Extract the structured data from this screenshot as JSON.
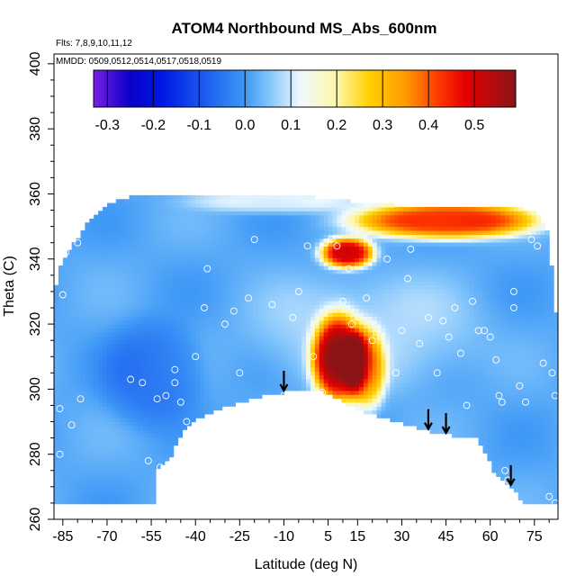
{
  "chart_data": {
    "type": "heatmap",
    "title": "ATOM4 Northbound MS_Abs_600nm",
    "annotations": {
      "flights": "Flts: 7,8,9,10,11,12",
      "dates": "MMDD: 0509,0512,0514,0517,0518,0519"
    },
    "xlabel": "Latitude (deg N)",
    "ylabel": "Theta (C)",
    "xlim": [
      -88,
      83
    ],
    "ylim": [
      260,
      403
    ],
    "x_ticks": [
      -85,
      -70,
      -55,
      -40,
      -25,
      -10,
      5,
      15,
      30,
      45,
      60,
      75
    ],
    "y_ticks": [
      260,
      280,
      300,
      320,
      340,
      360,
      380,
      400
    ],
    "grid": false,
    "colorbar": {
      "range": [
        -0.33,
        0.59
      ],
      "ticks": [
        -0.3,
        -0.2,
        -0.1,
        0.0,
        0.1,
        0.2,
        0.3,
        0.4,
        0.5
      ],
      "tick_labels": [
        "-0.3",
        "-0.2",
        "-0.1",
        "0.0",
        "0.1",
        "0.2",
        "0.3",
        "0.4",
        "0.5"
      ],
      "stops": [
        {
          "value": -0.33,
          "color": "#7a1fe8"
        },
        {
          "value": -0.25,
          "color": "#0a00c8"
        },
        {
          "value": -0.18,
          "color": "#0018e6"
        },
        {
          "value": -0.08,
          "color": "#1e62f0"
        },
        {
          "value": 0.0,
          "color": "#3e98f6"
        },
        {
          "value": 0.05,
          "color": "#7fc3fb"
        },
        {
          "value": 0.12,
          "color": "#eef9ff"
        },
        {
          "value": 0.2,
          "color": "#fff7a8"
        },
        {
          "value": 0.27,
          "color": "#ffd100"
        },
        {
          "value": 0.35,
          "color": "#ff9a00"
        },
        {
          "value": 0.42,
          "color": "#ff3c00"
        },
        {
          "value": 0.48,
          "color": "#e60000"
        },
        {
          "value": 0.59,
          "color": "#8a1416"
        }
      ]
    },
    "surface_boundary": [
      [
        -88,
        265
      ],
      [
        -53,
        265
      ],
      [
        -53,
        275
      ],
      [
        -48,
        280
      ],
      [
        -43,
        289
      ],
      [
        -37,
        292
      ],
      [
        -28,
        295
      ],
      [
        -17,
        298
      ],
      [
        -10,
        299
      ],
      [
        -3,
        299.5
      ],
      [
        3,
        299
      ],
      [
        9,
        296.5
      ],
      [
        14,
        294
      ],
      [
        25,
        291
      ],
      [
        35,
        288
      ],
      [
        45,
        286
      ],
      [
        50,
        285.5
      ],
      [
        55,
        285
      ],
      [
        58,
        281
      ],
      [
        61,
        275
      ],
      [
        65,
        272
      ],
      [
        68,
        269
      ],
      [
        71,
        265
      ],
      [
        83,
        265
      ]
    ],
    "top_boundary": [
      [
        -88,
        329
      ],
      [
        -86,
        337
      ],
      [
        -83,
        342
      ],
      [
        -79,
        348
      ],
      [
        -75,
        353
      ],
      [
        -70,
        357
      ],
      [
        -60,
        359.5
      ],
      [
        -40,
        360
      ],
      [
        -20,
        360
      ],
      [
        -10,
        359.5
      ],
      [
        0,
        359
      ],
      [
        10,
        358
      ],
      [
        20,
        357
      ],
      [
        40,
        356
      ],
      [
        60,
        356
      ],
      [
        70,
        355.5
      ],
      [
        73,
        355
      ],
      [
        76,
        354
      ],
      [
        79,
        350
      ],
      [
        80,
        345
      ],
      [
        81,
        335
      ],
      [
        82,
        325
      ],
      [
        83,
        318
      ]
    ],
    "background_value": 0.02,
    "features": [
      {
        "name": "upper-layer-plume",
        "x": [
          15,
          75
        ],
        "theta": [
          348,
          356
        ],
        "value": 0.45
      },
      {
        "name": "top-edge-enhancement",
        "x": [
          -40,
          15
        ],
        "theta": [
          356,
          360
        ],
        "value": 0.12
      },
      {
        "name": "central-aerosol-layer",
        "x": [
          2,
          15
        ],
        "theta": [
          297,
          322
        ],
        "value": 0.52
      },
      {
        "name": "central-layer-flank",
        "x": [
          14,
          22
        ],
        "theta": [
          295,
          318
        ],
        "value": 0.3
      },
      {
        "name": "elevated-patch",
        "x": [
          5,
          18
        ],
        "theta": [
          339,
          345
        ],
        "value": 0.5
      },
      {
        "name": "diffuse-plume",
        "x": [
          -20,
          55
        ],
        "theta": [
          300,
          335
        ],
        "value": 0.08
      },
      {
        "name": "low-negative-region",
        "x": [
          -70,
          -40
        ],
        "theta": [
          290,
          320
        ],
        "value": -0.05
      }
    ],
    "arrows_at_latitude": [
      -10,
      39,
      45,
      67
    ],
    "observation_points": [
      [
        -86,
        294
      ],
      [
        -86,
        280
      ],
      [
        -85,
        329
      ],
      [
        -84,
        342
      ],
      [
        -80,
        345
      ],
      [
        -79,
        297
      ],
      [
        -82,
        289
      ],
      [
        -62,
        303
      ],
      [
        -58,
        302
      ],
      [
        -56,
        278
      ],
      [
        -52,
        276
      ],
      [
        -53,
        297
      ],
      [
        -50,
        298
      ],
      [
        -47,
        302
      ],
      [
        -47,
        306
      ],
      [
        -45,
        296
      ],
      [
        -43,
        290
      ],
      [
        -40,
        310
      ],
      [
        -37,
        325
      ],
      [
        -36,
        337
      ],
      [
        -30,
        320
      ],
      [
        -27,
        324
      ],
      [
        -25,
        305
      ],
      [
        -22,
        328
      ],
      [
        -20,
        346
      ],
      [
        -19,
        296
      ],
      [
        -14,
        326
      ],
      [
        -10,
        298
      ],
      [
        -7,
        322
      ],
      [
        -5,
        330
      ],
      [
        -2,
        344
      ],
      [
        0,
        310
      ],
      [
        3,
        299
      ],
      [
        4,
        345
      ],
      [
        6,
        346
      ],
      [
        8,
        344
      ],
      [
        10,
        327
      ],
      [
        12,
        337
      ],
      [
        13,
        320
      ],
      [
        18,
        328
      ],
      [
        20,
        315
      ],
      [
        25,
        340
      ],
      [
        28,
        305
      ],
      [
        30,
        318
      ],
      [
        32,
        334
      ],
      [
        33,
        343
      ],
      [
        36,
        314
      ],
      [
        39,
        322
      ],
      [
        42,
        305
      ],
      [
        44,
        321
      ],
      [
        46,
        316
      ],
      [
        48,
        325
      ],
      [
        50,
        311
      ],
      [
        52,
        295
      ],
      [
        54,
        327
      ],
      [
        56,
        318
      ],
      [
        58,
        318
      ],
      [
        60,
        316
      ],
      [
        62,
        309
      ],
      [
        63,
        298
      ],
      [
        64,
        296
      ],
      [
        65,
        275
      ],
      [
        66,
        272
      ],
      [
        68,
        325
      ],
      [
        68,
        330
      ],
      [
        70,
        301
      ],
      [
        72,
        296
      ],
      [
        74,
        346
      ],
      [
        76,
        344
      ],
      [
        78,
        308
      ],
      [
        80,
        267
      ],
      [
        82,
        265
      ],
      [
        82,
        298
      ],
      [
        81,
        305
      ]
    ]
  }
}
